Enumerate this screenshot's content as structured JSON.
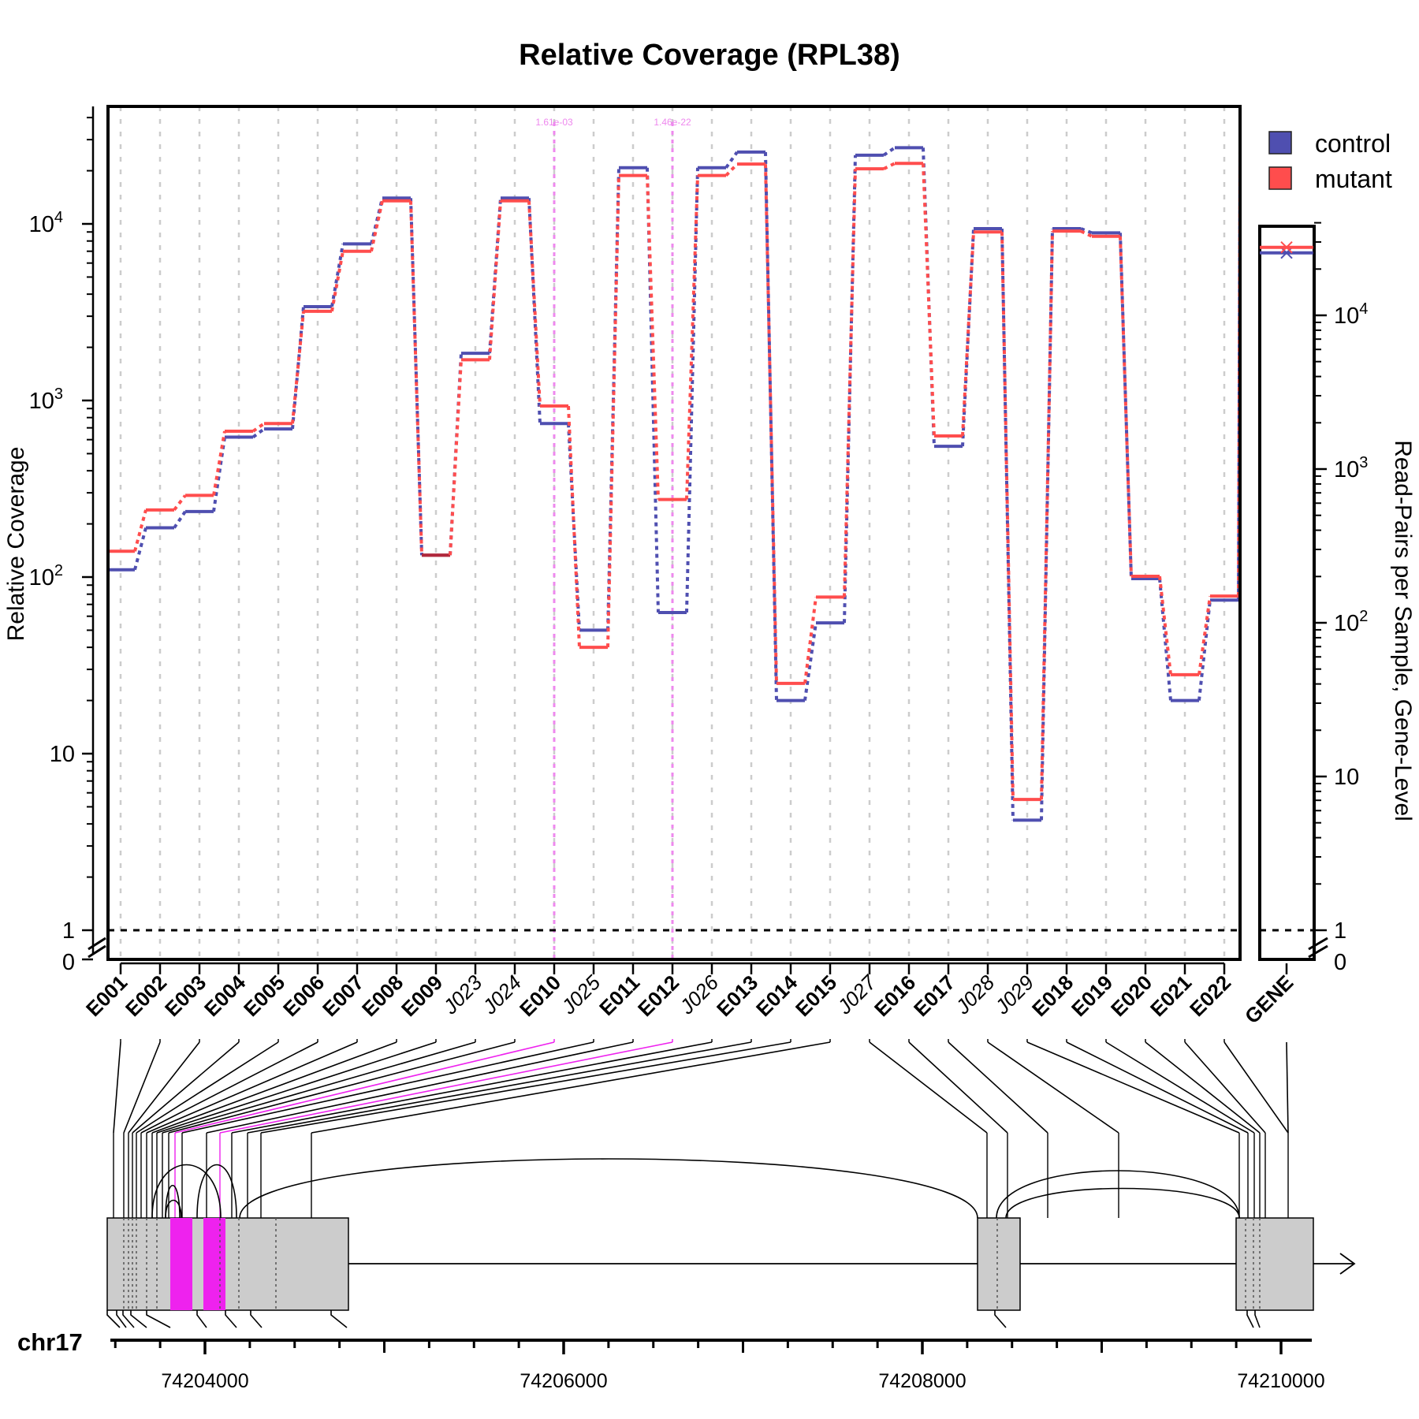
{
  "chart_data": {
    "type": "line",
    "title": "Relative Coverage (RPL38)",
    "ylabel": "Relative Coverage",
    "ylabel_right": "Read-Pairs per Sample, Gene-Level",
    "y_scale": "log",
    "ylim": [
      1,
      40000
    ],
    "y_ticks": [
      {
        "value": 1,
        "label": "1"
      },
      {
        "value": 10,
        "label": "10"
      },
      {
        "value": 100,
        "label": "10",
        "sup": "2"
      },
      {
        "value": 1000,
        "label": "10",
        "sup": "3"
      },
      {
        "value": 10000,
        "label": "10",
        "sup": "4"
      }
    ],
    "y_zero_label": "0",
    "features": [
      {
        "label": "E001",
        "kind": "exon",
        "control": 110,
        "mutant": 140
      },
      {
        "label": "E002",
        "kind": "exon",
        "control": 190,
        "mutant": 240
      },
      {
        "label": "E003",
        "kind": "exon",
        "control": 235,
        "mutant": 290
      },
      {
        "label": "E004",
        "kind": "exon",
        "control": 620,
        "mutant": 670
      },
      {
        "label": "E005",
        "kind": "exon",
        "control": 690,
        "mutant": 740
      },
      {
        "label": "E006",
        "kind": "exon",
        "control": 3400,
        "mutant": 3200
      },
      {
        "label": "E007",
        "kind": "exon",
        "control": 7700,
        "mutant": 7000
      },
      {
        "label": "E008",
        "kind": "exon",
        "control": 14000,
        "mutant": 13500
      },
      {
        "label": "E009",
        "kind": "exon",
        "control": 133,
        "mutant": 133
      },
      {
        "label": "J023",
        "kind": "junction",
        "control": 1850,
        "mutant": 1700
      },
      {
        "label": "J024",
        "kind": "junction",
        "control": 14000,
        "mutant": 13500
      },
      {
        "label": "E010",
        "kind": "exon",
        "control": 740,
        "mutant": 930,
        "significant": true
      },
      {
        "label": "J025",
        "kind": "junction",
        "control": 50,
        "mutant": 40
      },
      {
        "label": "E011",
        "kind": "exon",
        "control": 20800,
        "mutant": 18800
      },
      {
        "label": "E012",
        "kind": "exon",
        "control": 63,
        "mutant": 275,
        "significant": true
      },
      {
        "label": "J026",
        "kind": "junction",
        "control": 20800,
        "mutant": 18800
      },
      {
        "label": "E013",
        "kind": "exon",
        "control": 25500,
        "mutant": 21800
      },
      {
        "label": "E014",
        "kind": "exon",
        "control": 20,
        "mutant": 25
      },
      {
        "label": "E015",
        "kind": "exon",
        "control": 55,
        "mutant": 77
      },
      {
        "label": "J027",
        "kind": "junction",
        "control": 24500,
        "mutant": 20500
      },
      {
        "label": "E016",
        "kind": "exon",
        "control": 27000,
        "mutant": 22000
      },
      {
        "label": "E017",
        "kind": "exon",
        "control": 550,
        "mutant": 630
      },
      {
        "label": "J028",
        "kind": "junction",
        "control": 9400,
        "mutant": 9000
      },
      {
        "label": "J029",
        "kind": "junction",
        "control": 4.2,
        "mutant": 5.5
      },
      {
        "label": "E018",
        "kind": "exon",
        "control": 9400,
        "mutant": 9100
      },
      {
        "label": "E019",
        "kind": "exon",
        "control": 8900,
        "mutant": 8500
      },
      {
        "label": "E020",
        "kind": "exon",
        "control": 98,
        "mutant": 101
      },
      {
        "label": "E021",
        "kind": "exon",
        "control": 20,
        "mutant": 28
      },
      {
        "label": "E022",
        "kind": "exon",
        "control": 74,
        "mutant": 78
      }
    ],
    "series": [
      {
        "name": "control",
        "color": "#4f4fb0"
      },
      {
        "name": "mutant",
        "color": "#ff4d4d"
      }
    ],
    "significance_annotations": [
      {
        "feature": "E010",
        "label": "1.61e-03"
      },
      {
        "feature": "E012",
        "label": "1.46e-22"
      }
    ],
    "gene_panel": {
      "label": "GENE",
      "ylim": [
        1,
        40000
      ],
      "y_ticks": [
        {
          "value": 1,
          "label": "1"
        },
        {
          "value": 10,
          "label": "10"
        },
        {
          "value": 100,
          "label": "10",
          "sup": "2"
        },
        {
          "value": 1000,
          "label": "10",
          "sup": "3"
        },
        {
          "value": 10000,
          "label": "10",
          "sup": "4"
        }
      ],
      "y_zero_label": "0",
      "control": 25500,
      "mutant": 27700
    },
    "legend": {
      "position": "top-right",
      "entries": [
        "control",
        "mutant"
      ]
    },
    "genome": {
      "chromosome": "chr17",
      "ticks": [
        {
          "value": 74204000,
          "label": "74204000"
        },
        {
          "value": 74206000,
          "label": "74206000"
        },
        {
          "value": 74208000,
          "label": "74208000"
        },
        {
          "value": 74210000,
          "label": "74210000"
        }
      ]
    },
    "reference_line": 1,
    "grid": "vertical dashed"
  },
  "colors": {
    "control": "#4f4fb0",
    "mutant": "#ff4d4d",
    "overlap": "#b0283c",
    "significant": "#ee22ee",
    "significant_light": "#ee88ee",
    "exon_fill": "#cccccc",
    "grid": "#cccccc"
  }
}
